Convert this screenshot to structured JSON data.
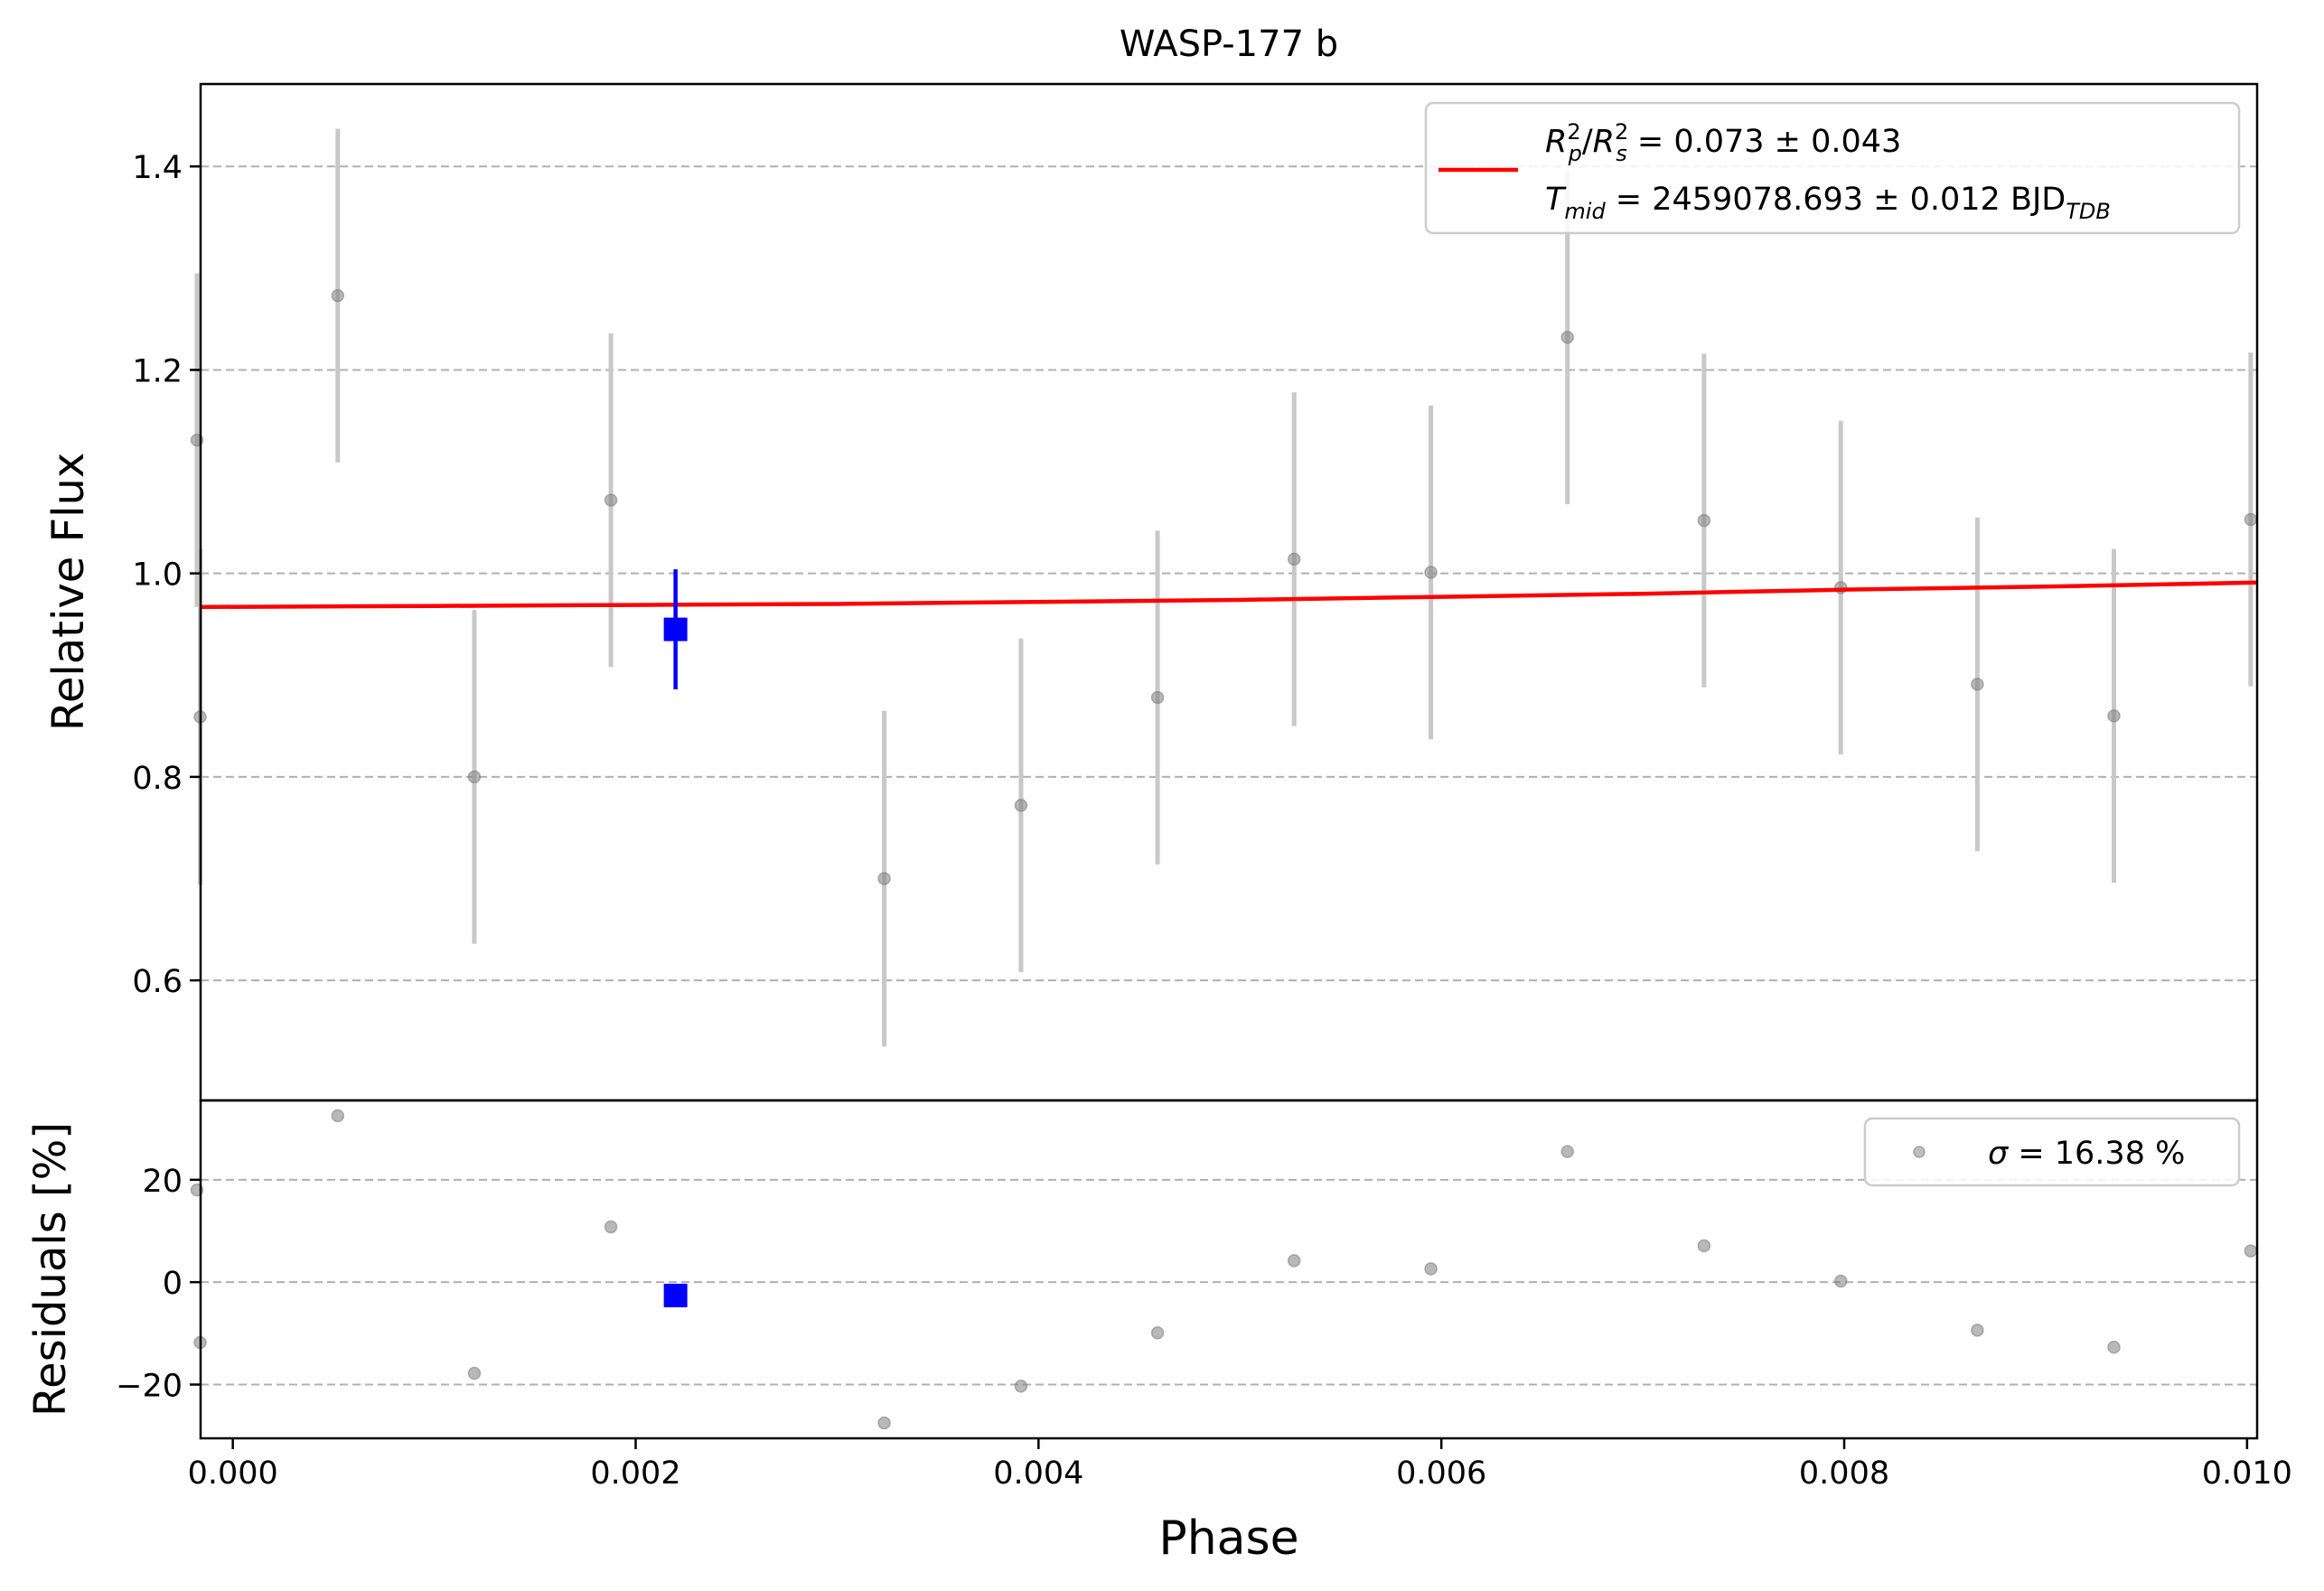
{
  "chart_data": [
    {
      "type": "scatter",
      "title": "WASP-177 b",
      "xlabel": "",
      "ylabel": "Relative Flux",
      "xlim": [
        -0.00016,
        0.01005
      ],
      "ylim": [
        0.482,
        1.481
      ],
      "yticks": [
        0.6,
        0.8,
        1.0,
        1.2,
        1.4
      ],
      "ytick_labels": [
        "0.6",
        "0.8",
        "1.0",
        "1.2",
        "1.4"
      ],
      "grid": "horizontal dashed",
      "legend_position": "top-right",
      "legend": {
        "line1_base": "R",
        "line1_sub1": "p",
        "line1_sup1": "2",
        "line1_slash": "/",
        "line1_sub2": "s",
        "line1_sup2": "2",
        "line1_value": " = 0.073 ± 0.043",
        "line2_base": "T",
        "line2_sub": "mid",
        "line2_value": " = 2459078.693 ± 0.012 BJD",
        "line2_unit_sub": "TDB"
      },
      "colors": {
        "data": "#808080",
        "errorbar": "#c8c8c8",
        "model": "#ff0000",
        "highlight": "#0000ff",
        "grid": "#b0b0b0"
      },
      "series": [
        {
          "kind": "data",
          "x": [
            -0.000162,
            -0.000178,
            0.000521,
            0.001199,
            0.001877,
            0.003234,
            0.003913,
            0.004591,
            0.005269,
            0.005948,
            0.006626,
            0.007304,
            0.007983,
            0.008661,
            0.009339,
            0.010018
          ],
          "y": [
            0.859,
            1.131,
            1.273,
            0.8,
            1.072,
            0.7,
            0.772,
            0.878,
            1.014,
            1.001,
            1.232,
            1.052,
            0.986,
            0.891,
            0.86,
            1.053
          ],
          "yerr": [
            0.165,
            0.164,
            0.164,
            0.164,
            0.164,
            0.165,
            0.164,
            0.164,
            0.164,
            0.164,
            0.164,
            0.164,
            0.164,
            0.164,
            0.164,
            0.164
          ]
        },
        {
          "kind": "highlight",
          "x": [
            0.002198
          ],
          "y": [
            0.945
          ],
          "yerr": [
            0.059
          ]
        },
        {
          "kind": "model",
          "x": [
            -0.00016,
            0.001,
            0.002,
            0.003,
            0.004,
            0.005,
            0.006,
            0.007,
            0.008,
            0.009,
            0.01005
          ],
          "y": [
            0.967,
            0.968,
            0.969,
            0.97,
            0.972,
            0.974,
            0.977,
            0.98,
            0.984,
            0.987,
            0.991
          ]
        }
      ]
    },
    {
      "type": "scatter",
      "title": "",
      "xlabel": "Phase",
      "ylabel": "Residuals [%]",
      "xlim": [
        -0.00016,
        0.01005
      ],
      "ylim": [
        -30.5,
        35.5
      ],
      "xticks": [
        0.0,
        0.002,
        0.004,
        0.006,
        0.008,
        0.01
      ],
      "xtick_labels": [
        "0.000",
        "0.002",
        "0.004",
        "0.006",
        "0.008",
        "0.010"
      ],
      "yticks": [
        -20,
        0,
        20
      ],
      "ytick_labels": [
        "−20",
        "0",
        "20"
      ],
      "grid": "horizontal dashed",
      "legend_position": "top-right",
      "legend": {
        "sigma_symbol": "σ",
        "text": " = 16.38 %"
      },
      "series": [
        {
          "kind": "data",
          "x": [
            -0.000162,
            -0.000178,
            0.000521,
            0.001199,
            0.001877,
            0.003234,
            0.003913,
            0.004591,
            0.005269,
            0.005948,
            0.006626,
            0.007304,
            0.007983,
            0.008661,
            0.009339,
            0.010018
          ],
          "y": [
            -11.8,
            18.0,
            32.5,
            -17.8,
            10.8,
            -27.5,
            -20.3,
            -9.9,
            4.2,
            2.6,
            25.5,
            7.1,
            0.2,
            -9.4,
            -12.7,
            6.1
          ]
        },
        {
          "kind": "highlight",
          "x": [
            0.002198
          ],
          "y": [
            -2.6
          ]
        }
      ]
    }
  ]
}
